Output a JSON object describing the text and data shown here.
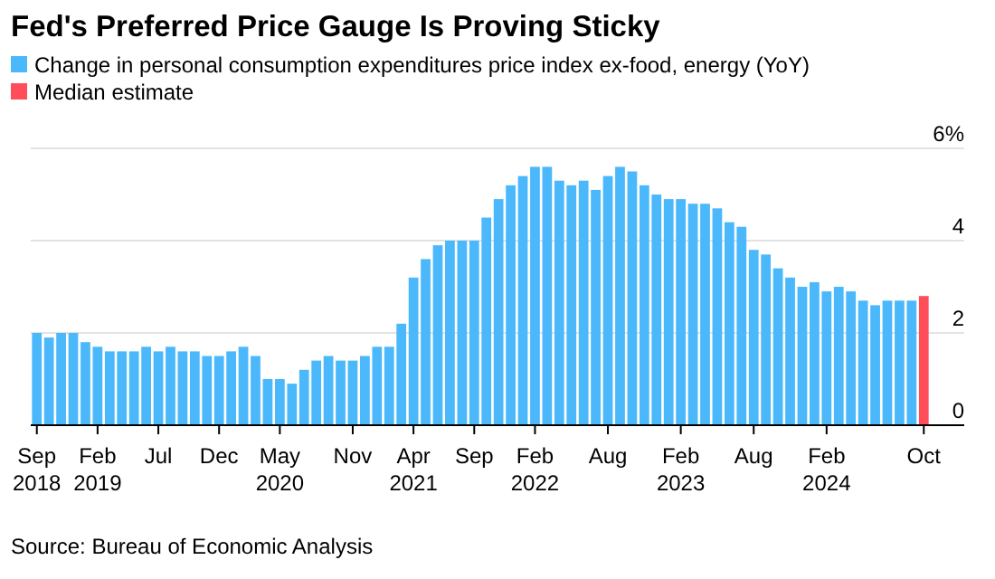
{
  "chart_data": {
    "type": "bar",
    "title": "Fed's Preferred Price Gauge Is Proving Sticky",
    "categories": [
      "Sep 2018",
      null,
      null,
      null,
      null,
      "Feb 2019",
      null,
      null,
      null,
      null,
      "Jul",
      null,
      null,
      null,
      null,
      "Dec",
      null,
      null,
      null,
      null,
      "May 2020",
      null,
      null,
      null,
      null,
      null,
      "Nov",
      null,
      null,
      null,
      null,
      "Apr 2021",
      null,
      null,
      null,
      null,
      "Sep",
      null,
      null,
      null,
      null,
      "Feb 2022",
      null,
      null,
      null,
      null,
      null,
      "Aug",
      null,
      null,
      null,
      null,
      null,
      "Feb 2023",
      null,
      null,
      null,
      null,
      null,
      "Aug",
      null,
      null,
      null,
      null,
      null,
      "Feb 2024",
      null,
      null,
      null,
      null,
      null,
      null,
      null,
      "Oct"
    ],
    "series": [
      {
        "name": "Change in personal consumption expenditures price index ex-food, energy (YoY)",
        "color": "#4ab8fb",
        "values": [
          2.0,
          1.9,
          2.0,
          2.0,
          1.8,
          1.7,
          1.6,
          1.6,
          1.6,
          1.7,
          1.6,
          1.7,
          1.6,
          1.6,
          1.5,
          1.5,
          1.6,
          1.7,
          1.5,
          1.0,
          1.0,
          0.9,
          1.2,
          1.4,
          1.5,
          1.4,
          1.4,
          1.5,
          1.7,
          1.7,
          2.2,
          3.2,
          3.6,
          3.9,
          4.0,
          4.0,
          4.0,
          4.5,
          4.9,
          5.2,
          5.4,
          5.6,
          5.6,
          5.3,
          5.2,
          5.3,
          5.1,
          5.4,
          5.6,
          5.5,
          5.2,
          5.0,
          4.9,
          4.9,
          4.8,
          4.8,
          4.7,
          4.4,
          4.3,
          3.8,
          3.7,
          3.4,
          3.2,
          3.0,
          3.1,
          2.9,
          3.0,
          2.9,
          2.7,
          2.6,
          2.7,
          2.7,
          2.7,
          null
        ]
      },
      {
        "name": "Median estimate",
        "color": "#ff4d5a",
        "values": [
          null,
          null,
          null,
          null,
          null,
          null,
          null,
          null,
          null,
          null,
          null,
          null,
          null,
          null,
          null,
          null,
          null,
          null,
          null,
          null,
          null,
          null,
          null,
          null,
          null,
          null,
          null,
          null,
          null,
          null,
          null,
          null,
          null,
          null,
          null,
          null,
          null,
          null,
          null,
          null,
          null,
          null,
          null,
          null,
          null,
          null,
          null,
          null,
          null,
          null,
          null,
          null,
          null,
          null,
          null,
          null,
          null,
          null,
          null,
          null,
          null,
          null,
          null,
          null,
          null,
          null,
          null,
          null,
          null,
          null,
          null,
          null,
          null,
          2.8
        ]
      }
    ],
    "ylim": [
      0,
      6
    ],
    "yticks": [
      0,
      2,
      4,
      {
        "value": 6,
        "label": "6%"
      }
    ],
    "grid": "y",
    "legend": "top left",
    "annotations": [
      "Source: Bureau of Economic Analysis"
    ]
  }
}
